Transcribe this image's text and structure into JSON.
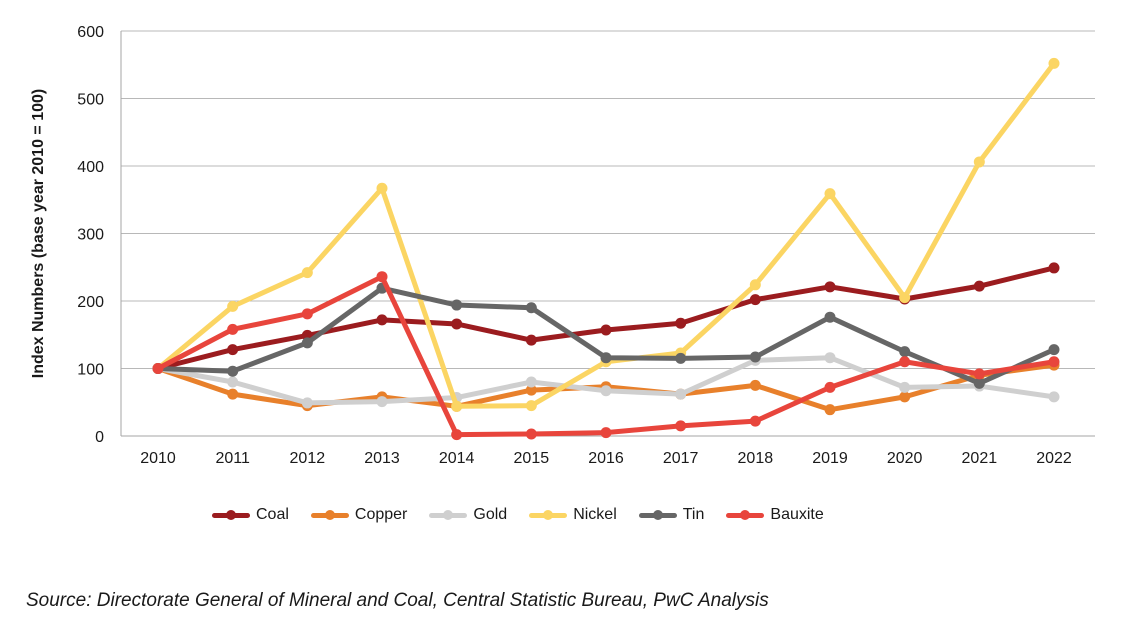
{
  "chart_data": {
    "type": "line",
    "title": "",
    "xlabel": "",
    "ylabel": "Index Numbers (base year 2010 = 100)",
    "ylim": [
      0,
      600
    ],
    "yticks": [
      0,
      100,
      200,
      300,
      400,
      500,
      600
    ],
    "grid": true,
    "legend_position": "bottom",
    "categories": [
      "2010",
      "2011",
      "2012",
      "2013",
      "2014",
      "2015",
      "2016",
      "2017",
      "2018",
      "2019",
      "2020",
      "2021",
      "2022"
    ],
    "series": [
      {
        "name": "Coal",
        "color": "#9b1c1f",
        "values": [
          100,
          128,
          149,
          172,
          166,
          142,
          157,
          167,
          202,
          221,
          203,
          222,
          249
        ]
      },
      {
        "name": "Copper",
        "color": "#e8802b",
        "values": [
          100,
          62,
          45,
          58,
          44,
          68,
          73,
          62,
          75,
          39,
          58,
          90,
          105
        ]
      },
      {
        "name": "Gold",
        "color": "#cfcfcf",
        "values": [
          100,
          80,
          49,
          51,
          57,
          80,
          67,
          62,
          112,
          116,
          72,
          74,
          58
        ]
      },
      {
        "name": "Nickel",
        "color": "#fbd563",
        "values": [
          100,
          192,
          242,
          367,
          44,
          45,
          110,
          123,
          224,
          359,
          205,
          406,
          552
        ]
      },
      {
        "name": "Tin",
        "color": "#666666",
        "values": [
          100,
          96,
          138,
          219,
          194,
          190,
          116,
          115,
          117,
          176,
          125,
          78,
          128
        ]
      },
      {
        "name": "Bauxite",
        "color": "#e8453c",
        "values": [
          100,
          158,
          181,
          236,
          2,
          3,
          5,
          15,
          22,
          72,
          110,
          92,
          110
        ]
      }
    ]
  },
  "source": "Source: Directorate General of Mineral and Coal, Central Statistic Bureau, PwC Analysis"
}
